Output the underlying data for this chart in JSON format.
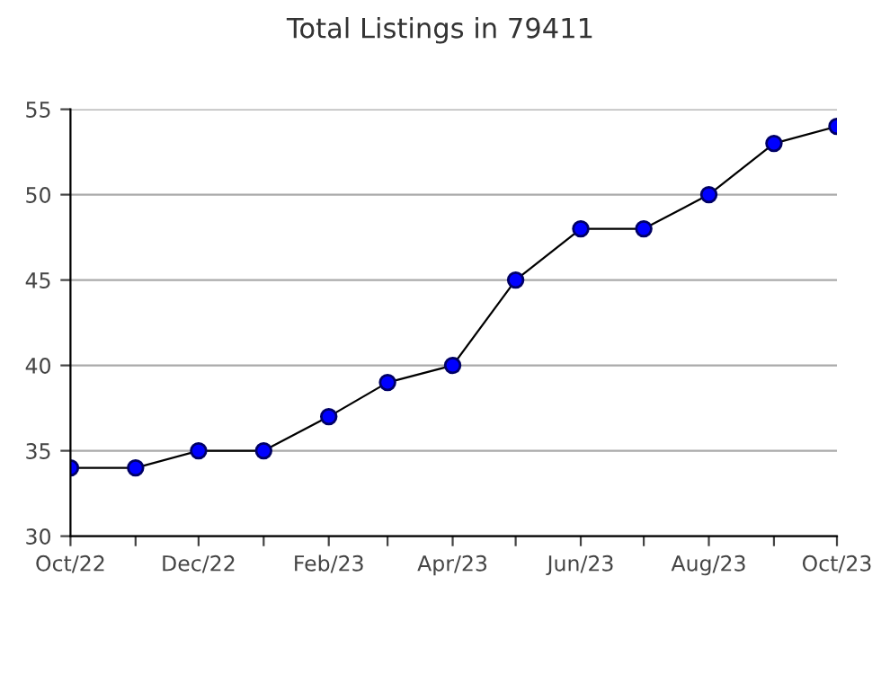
{
  "chart_data": {
    "type": "line",
    "title": "Total Listings in 79411",
    "x": [
      "2022-10",
      "2022-11",
      "2022-12",
      "2023-01",
      "2023-02",
      "2023-03",
      "2023-04",
      "2023-05",
      "2023-06",
      "2023-07",
      "2023-08",
      "2023-09",
      "2023-10"
    ],
    "series": [
      {
        "color": "#0000ff",
        "values": [
          34,
          34,
          35,
          35,
          37,
          39,
          40,
          45,
          48,
          48,
          50,
          53,
          54
        ]
      }
    ],
    "xlim": [
      "2022-10",
      "2023-10"
    ],
    "xticks": [
      {
        "value": "2022-10",
        "label": "Oct/22"
      },
      {
        "value": "2022-11",
        "label": null
      },
      {
        "value": "2022-12",
        "label": "Dec/22"
      },
      {
        "value": "2023-01",
        "label": null
      },
      {
        "value": "2023-02",
        "label": "Feb/23"
      },
      {
        "value": "2023-03",
        "label": null
      },
      {
        "value": "2023-04",
        "label": "Apr/23"
      },
      {
        "value": "2023-05",
        "label": null
      },
      {
        "value": "2023-06",
        "label": "Jun/23"
      },
      {
        "value": "2023-07",
        "label": null
      },
      {
        "value": "2023-08",
        "label": "Aug/23"
      },
      {
        "value": "2023-09",
        "label": null
      },
      {
        "value": "2023-10",
        "label": "Oct/23"
      }
    ],
    "ylim": [
      30,
      55
    ],
    "yticks": [
      30,
      35,
      40,
      45,
      50,
      55
    ],
    "grid": "y",
    "marker": "circle",
    "line_style": "solid",
    "legend": false
  }
}
